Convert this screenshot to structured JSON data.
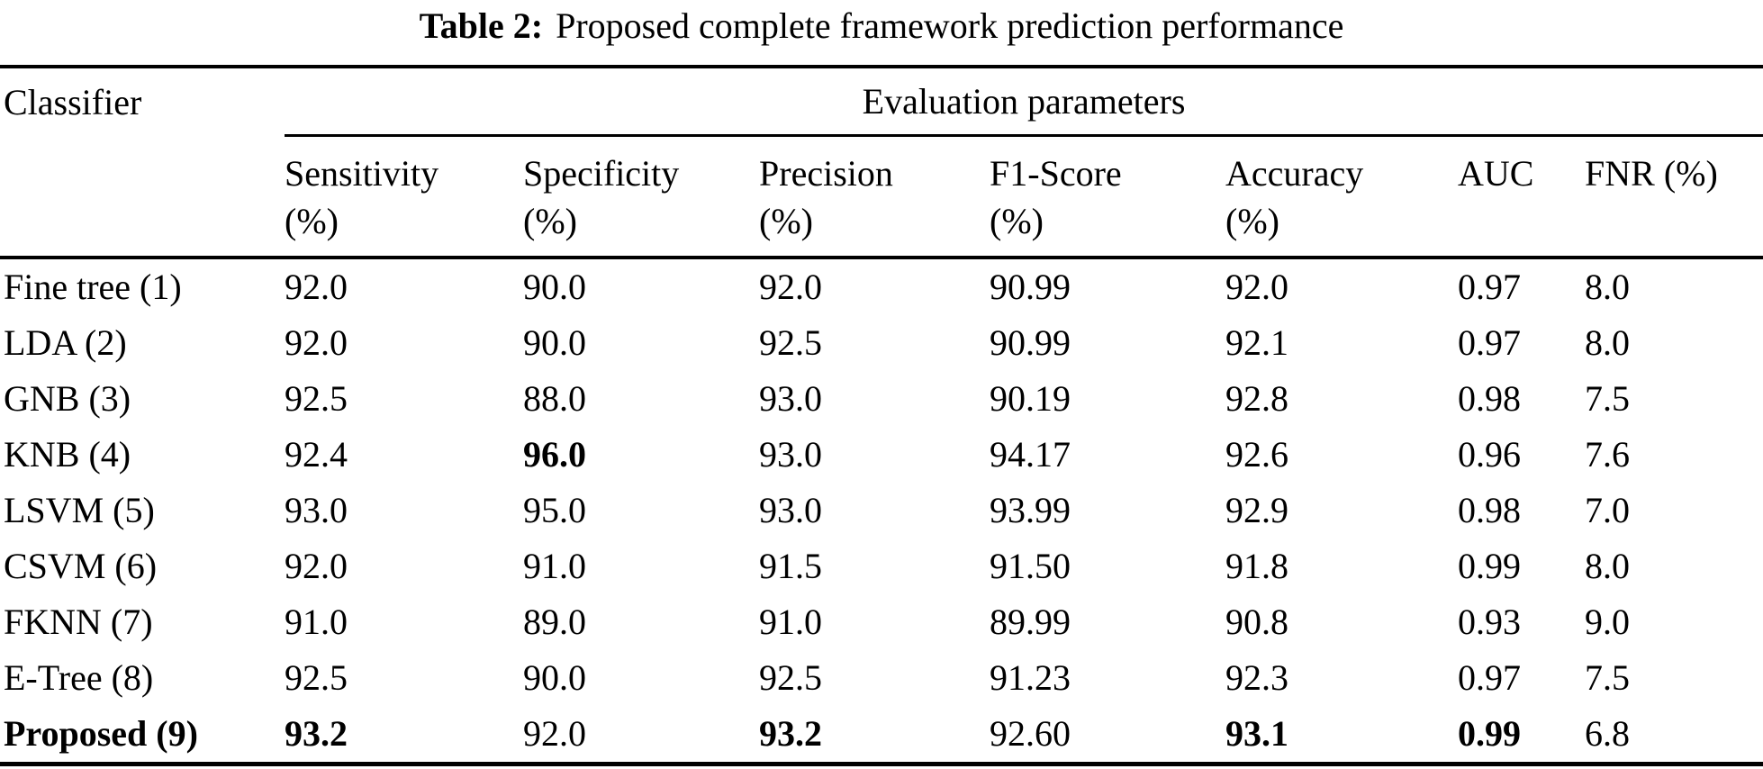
{
  "caption": {
    "label": "Table 2:",
    "text": "Proposed complete framework prediction performance"
  },
  "group_header": {
    "classifier": "Classifier",
    "evaluation": "Evaluation parameters"
  },
  "columns": [
    {
      "name": "Sensitivity",
      "unit": "(%)"
    },
    {
      "name": "Specificity",
      "unit": "(%)"
    },
    {
      "name": "Precision",
      "unit": "(%)"
    },
    {
      "name": "F1-Score",
      "unit": "(%)"
    },
    {
      "name": "Accuracy",
      "unit": "(%)"
    },
    {
      "name": "AUC",
      "unit": ""
    },
    {
      "name": "FNR (%)",
      "unit": ""
    }
  ],
  "rows": [
    {
      "classifier": "Fine tree (1)",
      "bold_classifier": false,
      "values": [
        "92.0",
        "90.0",
        "92.0",
        "90.99",
        "92.0",
        "0.97",
        "8.0"
      ],
      "bold": [
        false,
        false,
        false,
        false,
        false,
        false,
        false
      ]
    },
    {
      "classifier": "LDA (2)",
      "bold_classifier": false,
      "values": [
        "92.0",
        "90.0",
        "92.5",
        "90.99",
        "92.1",
        "0.97",
        "8.0"
      ],
      "bold": [
        false,
        false,
        false,
        false,
        false,
        false,
        false
      ]
    },
    {
      "classifier": "GNB (3)",
      "bold_classifier": false,
      "values": [
        "92.5",
        "88.0",
        "93.0",
        "90.19",
        "92.8",
        "0.98",
        "7.5"
      ],
      "bold": [
        false,
        false,
        false,
        false,
        false,
        false,
        false
      ]
    },
    {
      "classifier": "KNB (4)",
      "bold_classifier": false,
      "values": [
        "92.4",
        "96.0",
        "93.0",
        "94.17",
        "92.6",
        "0.96",
        "7.6"
      ],
      "bold": [
        false,
        true,
        false,
        false,
        false,
        false,
        false
      ]
    },
    {
      "classifier": "LSVM (5)",
      "bold_classifier": false,
      "values": [
        "93.0",
        "95.0",
        "93.0",
        "93.99",
        "92.9",
        "0.98",
        "7.0"
      ],
      "bold": [
        false,
        false,
        false,
        false,
        false,
        false,
        false
      ]
    },
    {
      "classifier": "CSVM (6)",
      "bold_classifier": false,
      "values": [
        "92.0",
        "91.0",
        "91.5",
        "91.50",
        "91.8",
        "0.99",
        "8.0"
      ],
      "bold": [
        false,
        false,
        false,
        false,
        false,
        false,
        false
      ]
    },
    {
      "classifier": "FKNN (7)",
      "bold_classifier": false,
      "values": [
        "91.0",
        "89.0",
        "91.0",
        "89.99",
        "90.8",
        "0.93",
        "9.0"
      ],
      "bold": [
        false,
        false,
        false,
        false,
        false,
        false,
        false
      ]
    },
    {
      "classifier": "E-Tree (8)",
      "bold_classifier": false,
      "values": [
        "92.5",
        "90.0",
        "92.5",
        "91.23",
        "92.3",
        "0.97",
        "7.5"
      ],
      "bold": [
        false,
        false,
        false,
        false,
        false,
        false,
        false
      ]
    },
    {
      "classifier": "Proposed (9)",
      "bold_classifier": true,
      "values": [
        "93.2",
        "92.0",
        "93.2",
        "92.60",
        "93.1",
        "0.99",
        "6.8"
      ],
      "bold": [
        true,
        false,
        true,
        false,
        true,
        true,
        false
      ]
    }
  ],
  "chart_data": {
    "type": "table",
    "title": "Table 2: Proposed complete framework prediction performance",
    "column_group": "Evaluation parameters",
    "categories": [
      "Sensitivity (%)",
      "Specificity (%)",
      "Precision (%)",
      "F1-Score (%)",
      "Accuracy (%)",
      "AUC",
      "FNR (%)"
    ],
    "series": [
      {
        "name": "Fine tree (1)",
        "values": [
          92.0,
          90.0,
          92.0,
          90.99,
          92.0,
          0.97,
          8.0
        ]
      },
      {
        "name": "LDA (2)",
        "values": [
          92.0,
          90.0,
          92.5,
          90.99,
          92.1,
          0.97,
          8.0
        ]
      },
      {
        "name": "GNB (3)",
        "values": [
          92.5,
          88.0,
          93.0,
          90.19,
          92.8,
          0.98,
          7.5
        ]
      },
      {
        "name": "KNB (4)",
        "values": [
          92.4,
          96.0,
          93.0,
          94.17,
          92.6,
          0.96,
          7.6
        ]
      },
      {
        "name": "LSVM (5)",
        "values": [
          93.0,
          95.0,
          93.0,
          93.99,
          92.9,
          0.98,
          7.0
        ]
      },
      {
        "name": "CSVM (6)",
        "values": [
          92.0,
          91.0,
          91.5,
          91.5,
          91.8,
          0.99,
          8.0
        ]
      },
      {
        "name": "FKNN (7)",
        "values": [
          91.0,
          89.0,
          91.0,
          89.99,
          90.8,
          0.93,
          9.0
        ]
      },
      {
        "name": "E-Tree (8)",
        "values": [
          92.5,
          90.0,
          92.5,
          91.23,
          92.3,
          0.97,
          7.5
        ]
      },
      {
        "name": "Proposed (9)",
        "values": [
          93.2,
          92.0,
          93.2,
          92.6,
          93.1,
          0.99,
          6.8
        ]
      }
    ]
  }
}
